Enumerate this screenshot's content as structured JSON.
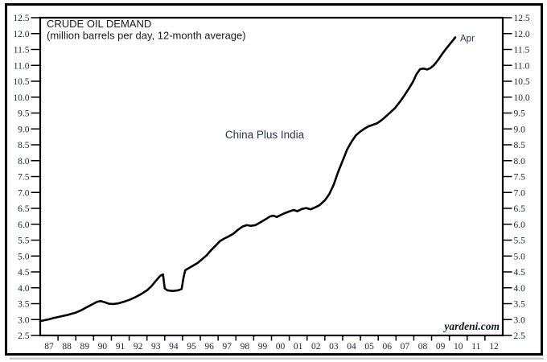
{
  "labels": {
    "title": "CRUDE OIL DEMAND",
    "subtitle": "(million barrels per day, 12-month average)",
    "series_label": "China Plus India",
    "end_annotation": "Apr",
    "watermark": "yardeni.com"
  },
  "colors": {
    "line": "#000000",
    "frame": "#000000",
    "axis_text": "#1b2335",
    "shadow": "#c9c9c9"
  },
  "chart_data": {
    "type": "line",
    "title": "CRUDE OIL DEMAND",
    "subtitle": "(million barrels per day, 12-month average)",
    "xlabel": "",
    "ylabel": "million barrels per day",
    "grid": false,
    "legend_position": "none",
    "x_range": [
      1987,
      2013
    ],
    "ylim": [
      2.5,
      12.5
    ],
    "y_ticks": [
      2.5,
      3.0,
      3.5,
      4.0,
      4.5,
      5.0,
      5.5,
      6.0,
      6.5,
      7.0,
      7.5,
      8.0,
      8.5,
      9.0,
      9.5,
      10.0,
      10.5,
      11.0,
      11.5,
      12.0,
      12.5
    ],
    "y_axis_sides": "both",
    "x_tick_labels": [
      "87",
      "88",
      "89",
      "90",
      "91",
      "92",
      "93",
      "94",
      "95",
      "96",
      "97",
      "98",
      "99",
      "00",
      "01",
      "02",
      "03",
      "04",
      "05",
      "06",
      "07",
      "08",
      "09",
      "10",
      "11",
      "12"
    ],
    "annotations": [
      {
        "text": "Apr",
        "x": 2010.33,
        "y": 11.88
      }
    ],
    "watermark": "yardeni.com",
    "series": [
      {
        "name": "China Plus India",
        "points": [
          [
            1987.0,
            2.95
          ],
          [
            1987.25,
            2.98
          ],
          [
            1987.5,
            3.01
          ],
          [
            1987.75,
            3.05
          ],
          [
            1988.0,
            3.08
          ],
          [
            1988.25,
            3.11
          ],
          [
            1988.5,
            3.14
          ],
          [
            1988.75,
            3.18
          ],
          [
            1989.0,
            3.22
          ],
          [
            1989.33,
            3.3
          ],
          [
            1989.66,
            3.4
          ],
          [
            1990.0,
            3.5
          ],
          [
            1990.2,
            3.56
          ],
          [
            1990.4,
            3.58
          ],
          [
            1990.6,
            3.55
          ],
          [
            1990.85,
            3.5
          ],
          [
            1991.1,
            3.49
          ],
          [
            1991.4,
            3.51
          ],
          [
            1991.7,
            3.56
          ],
          [
            1992.0,
            3.62
          ],
          [
            1992.33,
            3.7
          ],
          [
            1992.66,
            3.8
          ],
          [
            1993.0,
            3.92
          ],
          [
            1993.25,
            4.05
          ],
          [
            1993.5,
            4.22
          ],
          [
            1993.75,
            4.38
          ],
          [
            1993.9,
            4.42
          ],
          [
            1994.0,
            3.98
          ],
          [
            1994.15,
            3.92
          ],
          [
            1994.45,
            3.9
          ],
          [
            1994.75,
            3.92
          ],
          [
            1994.95,
            3.96
          ],
          [
            1995.05,
            4.3
          ],
          [
            1995.15,
            4.55
          ],
          [
            1995.35,
            4.62
          ],
          [
            1995.6,
            4.7
          ],
          [
            1995.85,
            4.78
          ],
          [
            1996.1,
            4.9
          ],
          [
            1996.35,
            5.02
          ],
          [
            1996.6,
            5.18
          ],
          [
            1996.85,
            5.32
          ],
          [
            1997.1,
            5.47
          ],
          [
            1997.35,
            5.55
          ],
          [
            1997.6,
            5.62
          ],
          [
            1997.85,
            5.7
          ],
          [
            1998.1,
            5.82
          ],
          [
            1998.35,
            5.92
          ],
          [
            1998.6,
            5.97
          ],
          [
            1998.85,
            5.95
          ],
          [
            1999.1,
            5.97
          ],
          [
            1999.35,
            6.05
          ],
          [
            1999.65,
            6.15
          ],
          [
            1999.9,
            6.24
          ],
          [
            2000.1,
            6.27
          ],
          [
            2000.3,
            6.23
          ],
          [
            2000.55,
            6.3
          ],
          [
            2000.8,
            6.36
          ],
          [
            2001.0,
            6.4
          ],
          [
            2001.25,
            6.45
          ],
          [
            2001.45,
            6.41
          ],
          [
            2001.7,
            6.48
          ],
          [
            2001.95,
            6.51
          ],
          [
            2002.2,
            6.47
          ],
          [
            2002.45,
            6.53
          ],
          [
            2002.7,
            6.6
          ],
          [
            2003.0,
            6.75
          ],
          [
            2003.25,
            6.95
          ],
          [
            2003.5,
            7.25
          ],
          [
            2003.75,
            7.65
          ],
          [
            2004.0,
            8.0
          ],
          [
            2004.25,
            8.35
          ],
          [
            2004.5,
            8.6
          ],
          [
            2004.75,
            8.8
          ],
          [
            2005.0,
            8.92
          ],
          [
            2005.2,
            9.0
          ],
          [
            2005.45,
            9.08
          ],
          [
            2005.7,
            9.13
          ],
          [
            2005.95,
            9.18
          ],
          [
            2006.2,
            9.28
          ],
          [
            2006.45,
            9.4
          ],
          [
            2006.7,
            9.53
          ],
          [
            2006.95,
            9.66
          ],
          [
            2007.2,
            9.84
          ],
          [
            2007.45,
            10.04
          ],
          [
            2007.7,
            10.25
          ],
          [
            2007.95,
            10.48
          ],
          [
            2008.15,
            10.72
          ],
          [
            2008.35,
            10.88
          ],
          [
            2008.55,
            10.9
          ],
          [
            2008.75,
            10.87
          ],
          [
            2008.95,
            10.92
          ],
          [
            2009.15,
            11.02
          ],
          [
            2009.4,
            11.2
          ],
          [
            2009.65,
            11.4
          ],
          [
            2009.9,
            11.58
          ],
          [
            2010.1,
            11.72
          ],
          [
            2010.33,
            11.88
          ]
        ]
      }
    ]
  }
}
